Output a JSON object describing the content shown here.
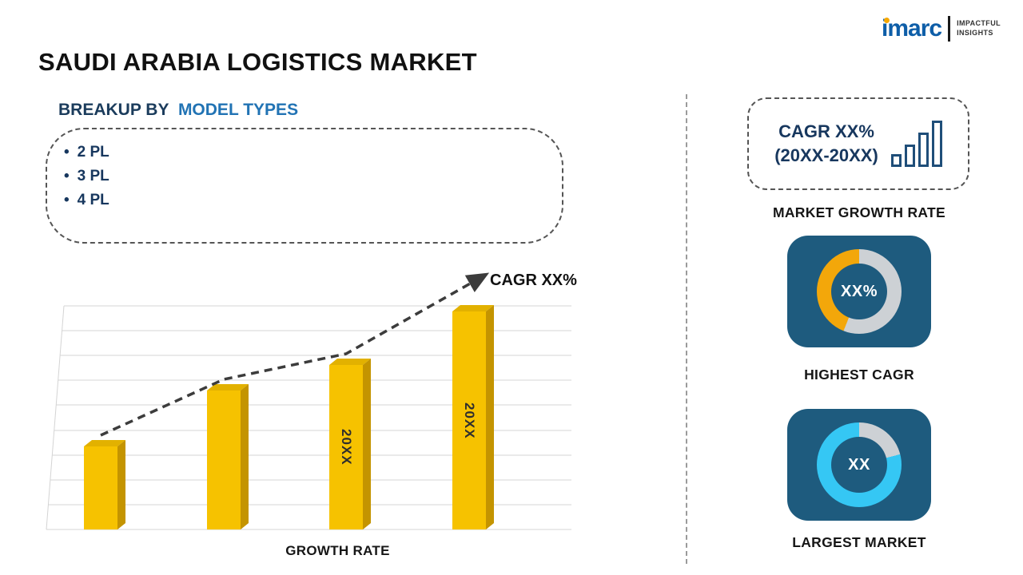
{
  "logo": {
    "brand": "imarc",
    "tagline_line1": "IMPACTFUL",
    "tagline_line2": "INSIGHTS"
  },
  "page_title": "SAUDI ARABIA LOGISTICS MARKET",
  "left_section": {
    "heading_prefix": "BREAKUP BY",
    "heading_highlight": "MODEL TYPES",
    "bullet_char": "•",
    "model_types": [
      "2 PL",
      "3 PL",
      "4 PL"
    ]
  },
  "chart_data": {
    "type": "bar",
    "categories": [
      "",
      "",
      "",
      ""
    ],
    "values": [
      36,
      60,
      71,
      94
    ],
    "bar_labels": [
      "",
      "",
      "20XX",
      "20XX"
    ],
    "ylim": [
      0,
      100
    ],
    "grid": true,
    "xlabel": "GROWTH RATE",
    "trend_label": "CAGR XX%",
    "bar_color": "#F6C200",
    "bar_side_color": "#C49400",
    "bar_top_color": "#E2B100",
    "trend_line_color": "#3C3C3C"
  },
  "right_section": {
    "cagr_box": {
      "line1": "CAGR XX%",
      "line2": "(20XX-20XX)"
    },
    "market_growth_label": "MARKET GROWTH RATE",
    "highest_cagr": {
      "value": "XX%",
      "label": "HIGHEST CAGR",
      "arc_color": "#F3A70A",
      "ring_color": "#CDD1D5",
      "arc_percent": 44
    },
    "largest_market": {
      "value": "XX",
      "label": "LARGEST MARKET",
      "arc_color": "#35C7F4",
      "ring_color": "#CDD1D5",
      "arc_percent": 79
    },
    "card_color": "#1E5B7E"
  },
  "colors": {
    "accent_navy": "#17375E",
    "heading_blue": "#2173B4",
    "brand_blue": "#0E5EA8"
  }
}
